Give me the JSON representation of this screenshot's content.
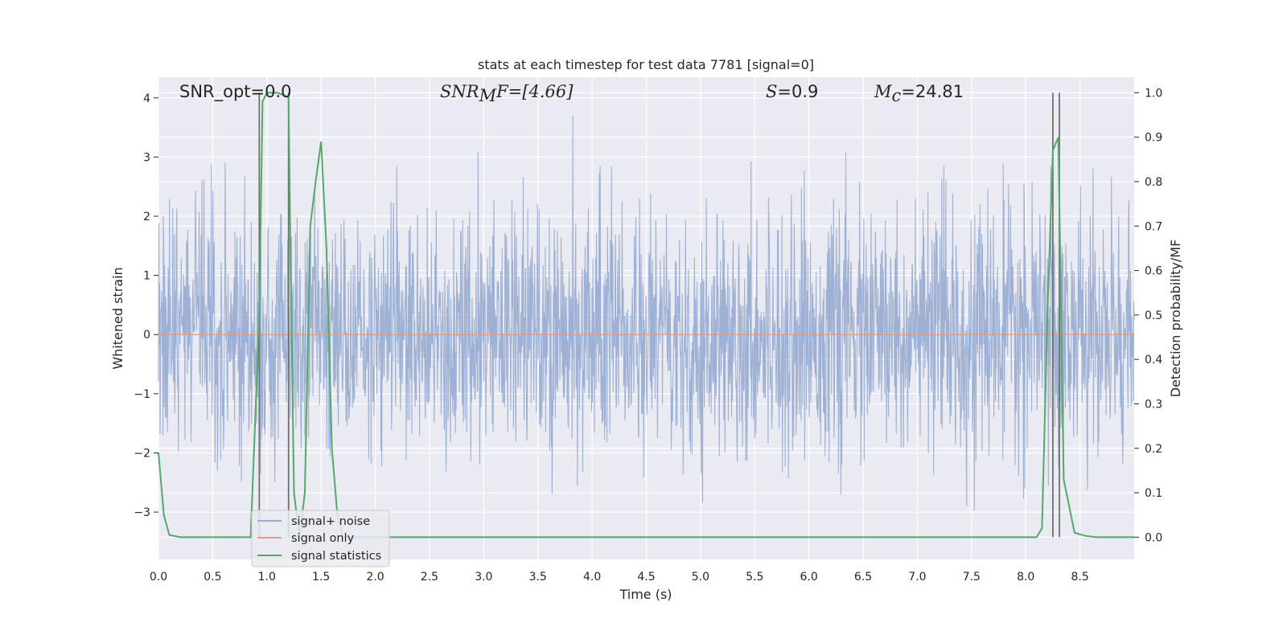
{
  "chart_data": {
    "type": "line",
    "title": "stats at each timestep for test data 7781 [signal=0]",
    "xlabel": "Time (s)",
    "ylabel": "Whitened strain",
    "ylabel_right": "Detection probability/MF",
    "xlim": [
      0,
      9
    ],
    "ylim": [
      -3.8,
      4.35
    ],
    "ylim_right": [
      -0.05,
      1.035
    ],
    "xticks": [
      "0.0",
      "0.5",
      "1.0",
      "1.5",
      "2.0",
      "2.5",
      "3.0",
      "3.5",
      "4.0",
      "4.5",
      "5.0",
      "5.5",
      "6.0",
      "6.5",
      "7.0",
      "7.5",
      "8.0",
      "8.5"
    ],
    "yticks": [
      "−3",
      "−2",
      "−1",
      "0",
      "1",
      "2",
      "3",
      "4"
    ],
    "yticks_right": [
      "0.0",
      "0.1",
      "0.2",
      "0.3",
      "0.4",
      "0.5",
      "0.6",
      "0.7",
      "0.8",
      "0.9",
      "1.0"
    ],
    "grid": true,
    "legend_placement": "lower-left",
    "annotations": {
      "snr_opt": "SNR_opt=0.0",
      "snr_mf_prefix": "SNR",
      "snr_mf_sub": "M",
      "snr_mf_suffix": "F=[4.66]",
      "s_symbol": "S",
      "s_value": "=0.9",
      "mc_symbol": "M",
      "mc_sub": "c",
      "mc_value": "=24.81"
    },
    "series": [
      {
        "name": "signal+ noise",
        "color": "#9aaed2",
        "description_of_values": "noise band",
        "approx_range": [
          -3.4,
          3.6
        ]
      },
      {
        "name": "signal only",
        "color": "#e39a7f",
        "x": [
          0,
          9
        ],
        "y": [
          0,
          0
        ]
      },
      {
        "name": "signal statistics",
        "color": "#55a868",
        "axis": "right",
        "x": [
          0.0,
          0.05,
          0.1,
          0.2,
          0.85,
          0.93,
          0.96,
          1.0,
          1.05,
          1.1,
          1.2,
          1.22,
          1.25,
          1.3,
          1.35,
          1.4,
          1.45,
          1.5,
          1.55,
          1.6,
          1.65,
          1.7,
          8.1,
          8.15,
          8.2,
          8.25,
          8.3,
          8.35,
          8.45,
          8.55,
          8.65,
          9.0
        ],
        "y": [
          0.19,
          0.05,
          0.005,
          0.0,
          0.0,
          0.5,
          0.98,
          1.0,
          1.0,
          1.0,
          0.99,
          0.6,
          0.1,
          0.0,
          0.1,
          0.7,
          0.8,
          0.89,
          0.65,
          0.2,
          0.05,
          0.0,
          0.0,
          0.02,
          0.5,
          0.87,
          0.9,
          0.13,
          0.01,
          0.003,
          0.0,
          0.0
        ]
      }
    ],
    "vertical_markers": {
      "color": "#707070",
      "x": [
        0.93,
        1.2,
        8.25,
        8.31
      ]
    }
  }
}
